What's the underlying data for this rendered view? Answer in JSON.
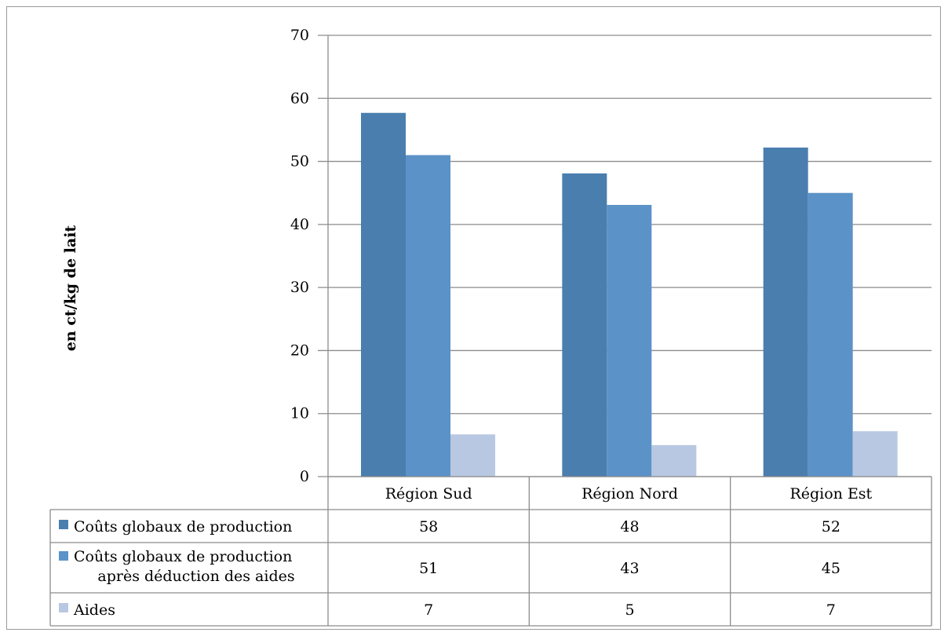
{
  "chart_data": {
    "type": "bar",
    "ylabel": "en ct/kg de lait",
    "ylim": [
      0,
      70
    ],
    "yticks": [
      0,
      10,
      20,
      30,
      40,
      50,
      60,
      70
    ],
    "grid": true,
    "legend_placement": "data-table",
    "categories": [
      "Région Sud",
      "Région Nord",
      "Région Est"
    ],
    "series": [
      {
        "name": "Coûts globaux de production",
        "label_lines": [
          "Coûts globaux de production"
        ],
        "color": "#4a7eae",
        "values": [
          57.7,
          48.1,
          52.2
        ],
        "labels": [
          "58",
          "48",
          "52"
        ]
      },
      {
        "name": "Coûts globaux de production après déduction des aides",
        "label_lines": [
          "Coûts globaux de production",
          "après déduction des aides"
        ],
        "color": "#5b93c8",
        "values": [
          51.0,
          43.1,
          45.0
        ],
        "labels": [
          "51",
          "43",
          "45"
        ]
      },
      {
        "name": "Aides",
        "label_lines": [
          "Aides"
        ],
        "color": "#b9c8e2",
        "values": [
          6.7,
          5.0,
          7.2
        ],
        "labels": [
          "7",
          "5",
          "7"
        ]
      }
    ]
  }
}
